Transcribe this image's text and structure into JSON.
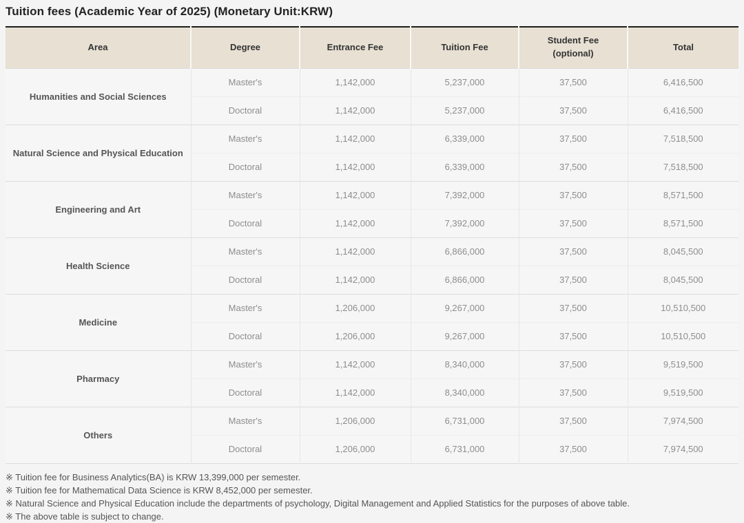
{
  "title": "Tuition fees (Academic Year of 2025) (Monetary Unit:KRW)",
  "table": {
    "columns": [
      {
        "label": "Area",
        "sublabel": ""
      },
      {
        "label": "Degree",
        "sublabel": ""
      },
      {
        "label": "Entrance Fee",
        "sublabel": ""
      },
      {
        "label": "Tuition Fee",
        "sublabel": ""
      },
      {
        "label": "Student Fee",
        "sublabel": "(optional)"
      },
      {
        "label": "Total",
        "sublabel": ""
      }
    ],
    "groups": [
      {
        "area": "Humanities and Social Sciences",
        "rows": [
          {
            "degree": "Master's",
            "entrance_fee": "1,142,000",
            "tuition_fee": "5,237,000",
            "student_fee": "37,500",
            "total": "6,416,500"
          },
          {
            "degree": "Doctoral",
            "entrance_fee": "1,142,000",
            "tuition_fee": "5,237,000",
            "student_fee": "37,500",
            "total": "6,416,500"
          }
        ]
      },
      {
        "area": "Natural Science and Physical Education",
        "rows": [
          {
            "degree": "Master's",
            "entrance_fee": "1,142,000",
            "tuition_fee": "6,339,000",
            "student_fee": "37,500",
            "total": "7,518,500"
          },
          {
            "degree": "Doctoral",
            "entrance_fee": "1,142,000",
            "tuition_fee": "6,339,000",
            "student_fee": "37,500",
            "total": "7,518,500"
          }
        ]
      },
      {
        "area": "Engineering and Art",
        "rows": [
          {
            "degree": "Master's",
            "entrance_fee": "1,142,000",
            "tuition_fee": "7,392,000",
            "student_fee": "37,500",
            "total": "8,571,500"
          },
          {
            "degree": "Doctoral",
            "entrance_fee": "1,142,000",
            "tuition_fee": "7,392,000",
            "student_fee": "37,500",
            "total": "8,571,500"
          }
        ]
      },
      {
        "area": "Health Science",
        "rows": [
          {
            "degree": "Master's",
            "entrance_fee": "1,142,000",
            "tuition_fee": "6,866,000",
            "student_fee": "37,500",
            "total": "8,045,500"
          },
          {
            "degree": "Doctoral",
            "entrance_fee": "1,142,000",
            "tuition_fee": "6,866,000",
            "student_fee": "37,500",
            "total": "8,045,500"
          }
        ]
      },
      {
        "area": "Medicine",
        "rows": [
          {
            "degree": "Master's",
            "entrance_fee": "1,206,000",
            "tuition_fee": "9,267,000",
            "student_fee": "37,500",
            "total": "10,510,500"
          },
          {
            "degree": "Doctoral",
            "entrance_fee": "1,206,000",
            "tuition_fee": "9,267,000",
            "student_fee": "37,500",
            "total": "10,510,500"
          }
        ]
      },
      {
        "area": "Pharmacy",
        "rows": [
          {
            "degree": "Master's",
            "entrance_fee": "1,142,000",
            "tuition_fee": "8,340,000",
            "student_fee": "37,500",
            "total": "9,519,500"
          },
          {
            "degree": "Doctoral",
            "entrance_fee": "1,142,000",
            "tuition_fee": "8,340,000",
            "student_fee": "37,500",
            "total": "9,519,500"
          }
        ]
      },
      {
        "area": "Others",
        "rows": [
          {
            "degree": "Master's",
            "entrance_fee": "1,206,000",
            "tuition_fee": "6,731,000",
            "student_fee": "37,500",
            "total": "7,974,500"
          },
          {
            "degree": "Doctoral",
            "entrance_fee": "1,206,000",
            "tuition_fee": "6,731,000",
            "student_fee": "37,500",
            "total": "7,974,500"
          }
        ]
      }
    ]
  },
  "footnotes": [
    "※ Tuition fee for Business Analytics(BA) is KRW 13,399,000 per semester.",
    "※ Tuition fee for Mathematical Data Science is KRW 8,452,000 per semester.",
    "※ Natural Science and Physical Education include the departments of psychology, Digital Management and Applied Statistics for the purposes of above table.",
    "※ The above table is subject to change."
  ],
  "colors": {
    "page_bg": "#f4f4f4",
    "header_bg": "#e7e0d3",
    "header_top_border": "#1c1c1c",
    "cell_text": "#8d8d8d",
    "area_text": "#555555",
    "title_text": "#222222"
  }
}
